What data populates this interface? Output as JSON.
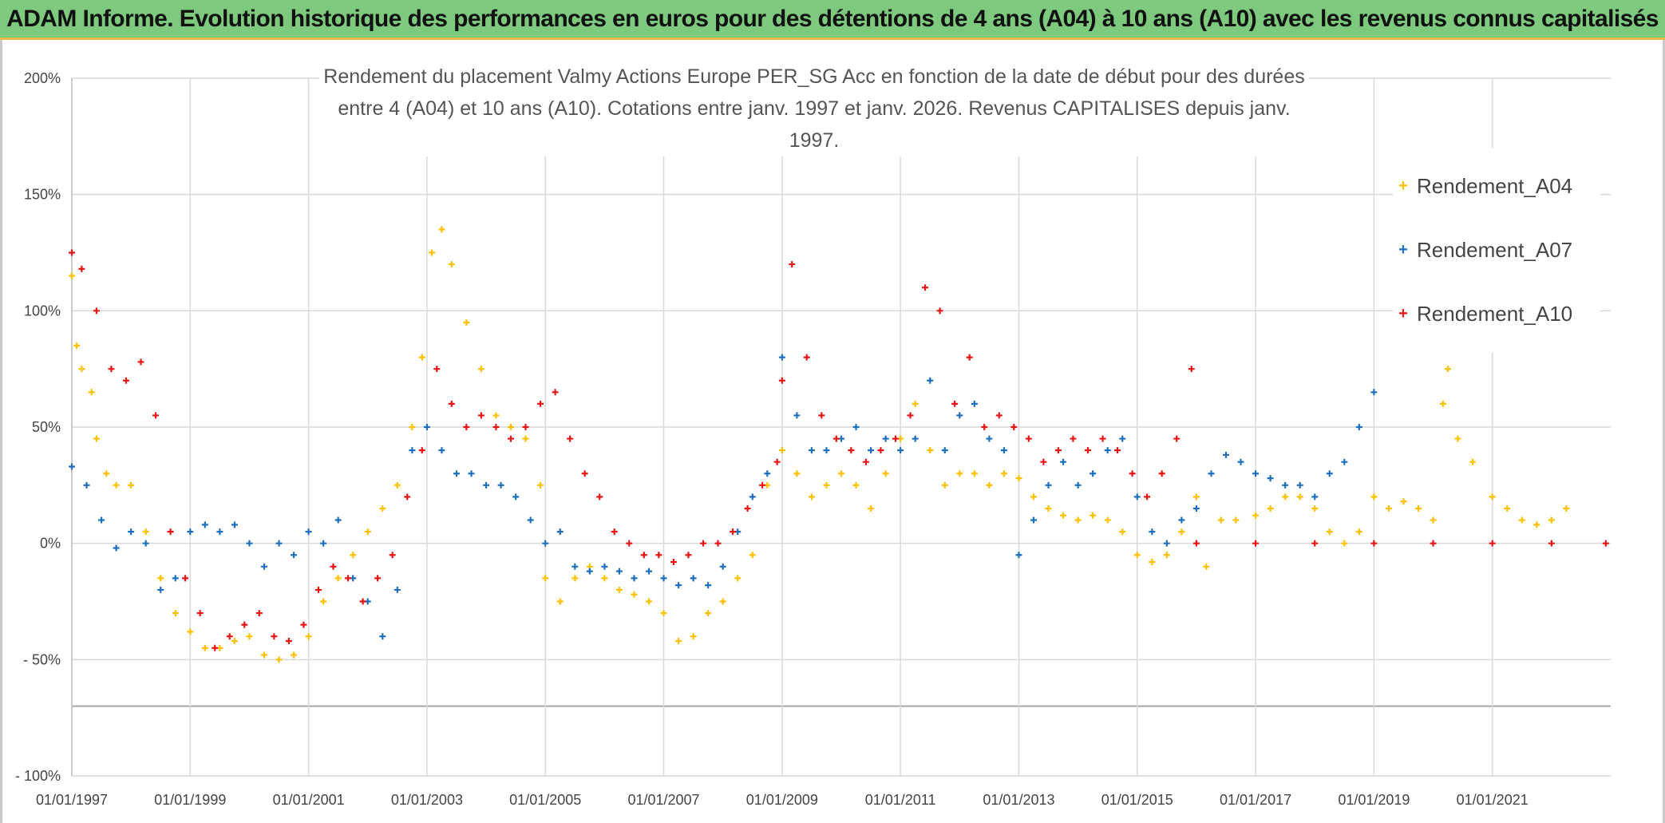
{
  "banner": {
    "title": "ADAM Informe. Evolution historique des performances en euros pour des détentions de 4 ans (A04) à 10 ans (A10) avec les revenus connus capitalisés"
  },
  "colors": {
    "banner_bg": "#7dc97d",
    "A04": "#ffc000",
    "A07": "#1f6fbf",
    "A10": "#e81414",
    "grid": "#d9d9d9"
  },
  "chart_data": {
    "type": "scatter",
    "title_lines": [
      "Rendement du placement Valmy Actions Europe PER_SG Acc en fonction de la date de début pour des durées",
      "entre 4 (A04) et 10 ans (A10). Cotations entre janv. 1997 et janv. 2026. Revenus CAPITALISES depuis janv. 1997."
    ],
    "xlabel": "",
    "ylabel": "",
    "x_range": [
      "1997-01-01",
      "2022-12-31"
    ],
    "ylim": [
      -100,
      200
    ],
    "y_ticks": [
      200,
      150,
      100,
      50,
      0,
      -50,
      -100
    ],
    "y_tick_labels": [
      "200%",
      "150%",
      "100%",
      "50%",
      "0%",
      "- 50%",
      "- 100%"
    ],
    "x_tick_labels": [
      "01/01/1997",
      "01/01/1999",
      "01/01/2001",
      "01/01/2003",
      "01/01/2005",
      "01/01/2007",
      "01/01/2009",
      "01/01/2011",
      "01/01/2013",
      "01/01/2015",
      "01/01/2017",
      "01/01/2019",
      "01/01/2021"
    ],
    "extra_hline": -70,
    "grid": true,
    "legend_position": "right",
    "series": [
      {
        "name": "Rendement_A04",
        "color": "#ffc000",
        "points": [
          [
            "1997-01",
            115
          ],
          [
            "1997-02",
            85
          ],
          [
            "1997-03",
            75
          ],
          [
            "1997-05",
            65
          ],
          [
            "1997-06",
            45
          ],
          [
            "1997-08",
            30
          ],
          [
            "1997-10",
            25
          ],
          [
            "1998-01",
            25
          ],
          [
            "1998-04",
            5
          ],
          [
            "1998-07",
            -15
          ],
          [
            "1998-10",
            -30
          ],
          [
            "1999-01",
            -38
          ],
          [
            "1999-04",
            -45
          ],
          [
            "1999-07",
            -45
          ],
          [
            "1999-10",
            -42
          ],
          [
            "2000-01",
            -40
          ],
          [
            "2000-04",
            -48
          ],
          [
            "2000-07",
            -50
          ],
          [
            "2000-10",
            -48
          ],
          [
            "2001-01",
            -40
          ],
          [
            "2001-04",
            -25
          ],
          [
            "2001-07",
            -15
          ],
          [
            "2001-10",
            -5
          ],
          [
            "2002-01",
            5
          ],
          [
            "2002-04",
            15
          ],
          [
            "2002-07",
            25
          ],
          [
            "2002-10",
            50
          ],
          [
            "2002-12",
            80
          ],
          [
            "2003-02",
            125
          ],
          [
            "2003-04",
            135
          ],
          [
            "2003-06",
            120
          ],
          [
            "2003-09",
            95
          ],
          [
            "2003-12",
            75
          ],
          [
            "2004-03",
            55
          ],
          [
            "2004-06",
            50
          ],
          [
            "2004-09",
            45
          ],
          [
            "2004-12",
            25
          ],
          [
            "2005-01",
            -15
          ],
          [
            "2005-04",
            -25
          ],
          [
            "2005-07",
            -15
          ],
          [
            "2005-10",
            -10
          ],
          [
            "2006-01",
            -15
          ],
          [
            "2006-04",
            -20
          ],
          [
            "2006-07",
            -22
          ],
          [
            "2006-10",
            -25
          ],
          [
            "2007-01",
            -30
          ],
          [
            "2007-04",
            -42
          ],
          [
            "2007-07",
            -40
          ],
          [
            "2007-10",
            -30
          ],
          [
            "2008-01",
            -25
          ],
          [
            "2008-04",
            -15
          ],
          [
            "2008-07",
            -5
          ],
          [
            "2008-10",
            25
          ],
          [
            "2009-01",
            40
          ],
          [
            "2009-04",
            30
          ],
          [
            "2009-07",
            20
          ],
          [
            "2009-10",
            25
          ],
          [
            "2010-01",
            30
          ],
          [
            "2010-04",
            25
          ],
          [
            "2010-07",
            15
          ],
          [
            "2010-10",
            30
          ],
          [
            "2011-01",
            45
          ],
          [
            "2011-04",
            60
          ],
          [
            "2011-07",
            40
          ],
          [
            "2011-10",
            25
          ],
          [
            "2012-01",
            30
          ],
          [
            "2012-04",
            30
          ],
          [
            "2012-07",
            25
          ],
          [
            "2012-10",
            30
          ],
          [
            "2013-01",
            28
          ],
          [
            "2013-04",
            20
          ],
          [
            "2013-07",
            15
          ],
          [
            "2013-10",
            12
          ],
          [
            "2014-01",
            10
          ],
          [
            "2014-04",
            12
          ],
          [
            "2014-07",
            10
          ],
          [
            "2014-10",
            5
          ],
          [
            "2015-01",
            -5
          ],
          [
            "2015-04",
            -8
          ],
          [
            "2015-07",
            -5
          ],
          [
            "2015-10",
            5
          ],
          [
            "2016-01",
            20
          ],
          [
            "2016-03",
            -10
          ],
          [
            "2016-06",
            10
          ],
          [
            "2016-09",
            10
          ],
          [
            "2017-01",
            12
          ],
          [
            "2017-04",
            15
          ],
          [
            "2017-07",
            20
          ],
          [
            "2017-10",
            20
          ],
          [
            "2018-01",
            15
          ],
          [
            "2018-04",
            5
          ],
          [
            "2018-07",
            0
          ],
          [
            "2018-10",
            5
          ],
          [
            "2019-01",
            20
          ],
          [
            "2019-04",
            15
          ],
          [
            "2019-07",
            18
          ],
          [
            "2019-10",
            15
          ],
          [
            "2020-01",
            10
          ],
          [
            "2020-03",
            60
          ],
          [
            "2020-04",
            75
          ],
          [
            "2020-06",
            45
          ],
          [
            "2020-09",
            35
          ],
          [
            "2021-01",
            20
          ],
          [
            "2021-04",
            15
          ],
          [
            "2021-07",
            10
          ],
          [
            "2021-10",
            8
          ],
          [
            "2022-01",
            10
          ],
          [
            "2022-04",
            15
          ]
        ]
      },
      {
        "name": "Rendement_A07",
        "color": "#1f6fbf",
        "points": [
          [
            "1997-01",
            33
          ],
          [
            "1997-04",
            25
          ],
          [
            "1997-07",
            10
          ],
          [
            "1997-10",
            -2
          ],
          [
            "1998-01",
            5
          ],
          [
            "1998-04",
            0
          ],
          [
            "1998-07",
            -20
          ],
          [
            "1998-10",
            -15
          ],
          [
            "1999-01",
            5
          ],
          [
            "1999-04",
            8
          ],
          [
            "1999-07",
            5
          ],
          [
            "1999-10",
            8
          ],
          [
            "2000-01",
            0
          ],
          [
            "2000-04",
            -10
          ],
          [
            "2000-07",
            0
          ],
          [
            "2000-10",
            -5
          ],
          [
            "2001-01",
            5
          ],
          [
            "2001-04",
            0
          ],
          [
            "2001-07",
            10
          ],
          [
            "2001-10",
            -15
          ],
          [
            "2002-01",
            -25
          ],
          [
            "2002-04",
            -40
          ],
          [
            "2002-07",
            -20
          ],
          [
            "2002-10",
            40
          ],
          [
            "2003-01",
            50
          ],
          [
            "2003-04",
            40
          ],
          [
            "2003-07",
            30
          ],
          [
            "2003-10",
            30
          ],
          [
            "2004-01",
            25
          ],
          [
            "2004-04",
            25
          ],
          [
            "2004-07",
            20
          ],
          [
            "2004-10",
            10
          ],
          [
            "2005-01",
            0
          ],
          [
            "2005-04",
            5
          ],
          [
            "2005-07",
            -10
          ],
          [
            "2005-10",
            -12
          ],
          [
            "2006-01",
            -10
          ],
          [
            "2006-04",
            -12
          ],
          [
            "2006-07",
            -15
          ],
          [
            "2006-10",
            -12
          ],
          [
            "2007-01",
            -15
          ],
          [
            "2007-04",
            -18
          ],
          [
            "2007-07",
            -15
          ],
          [
            "2007-10",
            -18
          ],
          [
            "2008-01",
            -10
          ],
          [
            "2008-04",
            5
          ],
          [
            "2008-07",
            20
          ],
          [
            "2008-10",
            30
          ],
          [
            "2009-01",
            80
          ],
          [
            "2009-04",
            55
          ],
          [
            "2009-07",
            40
          ],
          [
            "2009-10",
            40
          ],
          [
            "2010-01",
            45
          ],
          [
            "2010-04",
            50
          ],
          [
            "2010-07",
            40
          ],
          [
            "2010-10",
            45
          ],
          [
            "2011-01",
            40
          ],
          [
            "2011-04",
            45
          ],
          [
            "2011-07",
            70
          ],
          [
            "2011-10",
            40
          ],
          [
            "2012-01",
            55
          ],
          [
            "2012-04",
            60
          ],
          [
            "2012-07",
            45
          ],
          [
            "2012-10",
            40
          ],
          [
            "2013-01",
            -5
          ],
          [
            "2013-04",
            10
          ],
          [
            "2013-07",
            25
          ],
          [
            "2013-10",
            35
          ],
          [
            "2014-01",
            25
          ],
          [
            "2014-04",
            30
          ],
          [
            "2014-07",
            40
          ],
          [
            "2014-10",
            45
          ],
          [
            "2015-01",
            20
          ],
          [
            "2015-04",
            5
          ],
          [
            "2015-07",
            0
          ],
          [
            "2015-10",
            10
          ],
          [
            "2016-01",
            15
          ],
          [
            "2016-04",
            30
          ],
          [
            "2016-07",
            38
          ],
          [
            "2016-10",
            35
          ],
          [
            "2017-01",
            30
          ],
          [
            "2017-04",
            28
          ],
          [
            "2017-07",
            25
          ],
          [
            "2017-10",
            25
          ],
          [
            "2018-01",
            20
          ],
          [
            "2018-04",
            30
          ],
          [
            "2018-07",
            35
          ],
          [
            "2018-10",
            50
          ],
          [
            "2019-01",
            65
          ]
        ]
      },
      {
        "name": "Rendement_A10",
        "color": "#e81414",
        "points": [
          [
            "1997-01",
            125
          ],
          [
            "1997-03",
            118
          ],
          [
            "1997-06",
            100
          ],
          [
            "1997-09",
            75
          ],
          [
            "1997-12",
            70
          ],
          [
            "1998-03",
            78
          ],
          [
            "1998-06",
            55
          ],
          [
            "1998-09",
            5
          ],
          [
            "1998-12",
            -15
          ],
          [
            "1999-03",
            -30
          ],
          [
            "1999-06",
            -45
          ],
          [
            "1999-09",
            -40
          ],
          [
            "1999-12",
            -35
          ],
          [
            "2000-03",
            -30
          ],
          [
            "2000-06",
            -40
          ],
          [
            "2000-09",
            -42
          ],
          [
            "2000-12",
            -35
          ],
          [
            "2001-03",
            -20
          ],
          [
            "2001-06",
            -10
          ],
          [
            "2001-09",
            -15
          ],
          [
            "2001-12",
            -25
          ],
          [
            "2002-03",
            -15
          ],
          [
            "2002-06",
            -5
          ],
          [
            "2002-09",
            20
          ],
          [
            "2002-12",
            40
          ],
          [
            "2003-03",
            75
          ],
          [
            "2003-06",
            60
          ],
          [
            "2003-09",
            50
          ],
          [
            "2003-12",
            55
          ],
          [
            "2004-03",
            50
          ],
          [
            "2004-06",
            45
          ],
          [
            "2004-09",
            50
          ],
          [
            "2004-12",
            60
          ],
          [
            "2005-03",
            65
          ],
          [
            "2005-06",
            45
          ],
          [
            "2005-09",
            30
          ],
          [
            "2005-12",
            20
          ],
          [
            "2006-03",
            5
          ],
          [
            "2006-06",
            0
          ],
          [
            "2006-09",
            -5
          ],
          [
            "2006-12",
            -5
          ],
          [
            "2007-03",
            -8
          ],
          [
            "2007-06",
            -5
          ],
          [
            "2007-09",
            0
          ],
          [
            "2007-12",
            0
          ],
          [
            "2008-03",
            5
          ],
          [
            "2008-06",
            15
          ],
          [
            "2008-09",
            25
          ],
          [
            "2008-12",
            35
          ],
          [
            "2009-01",
            70
          ],
          [
            "2009-03",
            120
          ],
          [
            "2009-06",
            80
          ],
          [
            "2009-09",
            55
          ],
          [
            "2009-12",
            45
          ],
          [
            "2010-03",
            40
          ],
          [
            "2010-06",
            35
          ],
          [
            "2010-09",
            40
          ],
          [
            "2010-12",
            45
          ],
          [
            "2011-03",
            55
          ],
          [
            "2011-06",
            110
          ],
          [
            "2011-09",
            100
          ],
          [
            "2011-12",
            60
          ],
          [
            "2012-03",
            80
          ],
          [
            "2012-06",
            50
          ],
          [
            "2012-09",
            55
          ],
          [
            "2012-12",
            50
          ],
          [
            "2013-03",
            45
          ],
          [
            "2013-06",
            35
          ],
          [
            "2013-09",
            40
          ],
          [
            "2013-12",
            45
          ],
          [
            "2014-03",
            40
          ],
          [
            "2014-06",
            45
          ],
          [
            "2014-09",
            40
          ],
          [
            "2014-12",
            30
          ],
          [
            "2015-03",
            20
          ],
          [
            "2015-06",
            30
          ],
          [
            "2015-09",
            45
          ],
          [
            "2015-12",
            75
          ],
          [
            "2016-01",
            0
          ],
          [
            "2017-01",
            0
          ],
          [
            "2018-01",
            0
          ],
          [
            "2019-01",
            0
          ],
          [
            "2020-01",
            0
          ],
          [
            "2021-01",
            0
          ],
          [
            "2022-01",
            0
          ],
          [
            "2022-12",
            0
          ]
        ]
      }
    ]
  }
}
